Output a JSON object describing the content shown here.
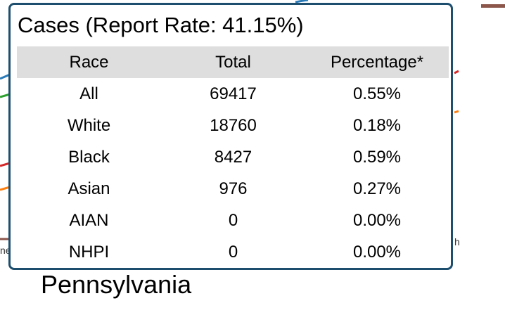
{
  "tooltip": {
    "title": "Cases (Report Rate: 41.15%)",
    "columns": [
      "Race",
      "Total",
      "Percentage*"
    ],
    "rows": [
      {
        "race": "All",
        "total": "69417",
        "percentage": "0.55%"
      },
      {
        "race": "White",
        "total": "18760",
        "percentage": "0.18%"
      },
      {
        "race": "Black",
        "total": "8427",
        "percentage": "0.59%"
      },
      {
        "race": "Asian",
        "total": "976",
        "percentage": "0.27%"
      },
      {
        "race": "AIAN",
        "total": "0",
        "percentage": "0.00%"
      },
      {
        "race": "NHPI",
        "total": "0",
        "percentage": "0.00%"
      }
    ]
  },
  "state_label": "Pennsylvania",
  "background": {
    "left_fragment": "ne",
    "right_fragment": "h"
  },
  "colors": {
    "tooltip_border": "#1d4e6e",
    "header_bg": "#dedede",
    "line_blue": "#2a7ab8",
    "line_green": "#2ca02c",
    "line_red": "#d62728",
    "line_orange": "#ff7f0e",
    "line_brown": "#8c564b"
  }
}
